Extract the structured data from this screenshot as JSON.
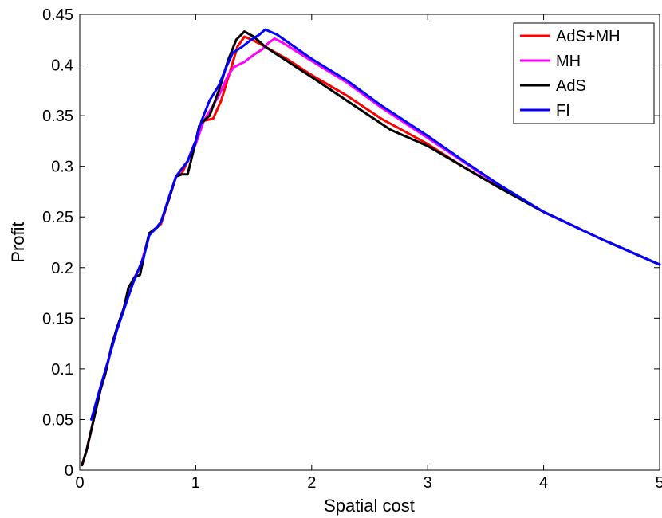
{
  "chart_data": {
    "type": "line",
    "xlabel": "Spatial cost",
    "ylabel": "Profit",
    "xlim": [
      0,
      5
    ],
    "ylim": [
      0,
      0.45
    ],
    "x_ticks": [
      "0",
      "1",
      "2",
      "3",
      "4",
      "5"
    ],
    "y_ticks": [
      "0",
      "0.05",
      "0.1",
      "0.15",
      "0.2",
      "0.25",
      "0.3",
      "0.35",
      "0.4",
      "0.45"
    ],
    "grid": false,
    "legend_position": "top-right",
    "series": [
      {
        "name": "AdS+MH",
        "color": "#ff0000",
        "points": [
          [
            0.02,
            0.005
          ],
          [
            0.06,
            0.02
          ],
          [
            0.12,
            0.05
          ],
          [
            0.18,
            0.08
          ],
          [
            0.22,
            0.095
          ],
          [
            0.28,
            0.125
          ],
          [
            0.32,
            0.14
          ],
          [
            0.38,
            0.16
          ],
          [
            0.42,
            0.18
          ],
          [
            0.47,
            0.19
          ],
          [
            0.52,
            0.2
          ],
          [
            0.57,
            0.22
          ],
          [
            0.6,
            0.234
          ],
          [
            0.67,
            0.24
          ],
          [
            0.7,
            0.243
          ],
          [
            0.77,
            0.268
          ],
          [
            0.83,
            0.29
          ],
          [
            0.88,
            0.293
          ],
          [
            0.93,
            0.305
          ],
          [
            0.98,
            0.32
          ],
          [
            1.02,
            0.33
          ],
          [
            1.07,
            0.345
          ],
          [
            1.15,
            0.347
          ],
          [
            1.22,
            0.365
          ],
          [
            1.3,
            0.395
          ],
          [
            1.36,
            0.418
          ],
          [
            1.42,
            0.428
          ],
          [
            1.5,
            0.424
          ],
          [
            1.6,
            0.418
          ],
          [
            1.8,
            0.405
          ],
          [
            2.0,
            0.39
          ],
          [
            2.3,
            0.37
          ],
          [
            2.6,
            0.347
          ],
          [
            3.0,
            0.322
          ],
          [
            3.3,
            0.3
          ],
          [
            3.6,
            0.28
          ],
          [
            4.0,
            0.255
          ],
          [
            4.5,
            0.228
          ],
          [
            5.0,
            0.203
          ]
        ]
      },
      {
        "name": "MH",
        "color": "#ff00ff",
        "points": [
          [
            0.02,
            0.005
          ],
          [
            0.06,
            0.02
          ],
          [
            0.12,
            0.05
          ],
          [
            0.18,
            0.08
          ],
          [
            0.22,
            0.095
          ],
          [
            0.28,
            0.125
          ],
          [
            0.32,
            0.14
          ],
          [
            0.38,
            0.16
          ],
          [
            0.42,
            0.18
          ],
          [
            0.47,
            0.19
          ],
          [
            0.52,
            0.2
          ],
          [
            0.57,
            0.22
          ],
          [
            0.6,
            0.234
          ],
          [
            0.67,
            0.24
          ],
          [
            0.7,
            0.245
          ],
          [
            0.77,
            0.268
          ],
          [
            0.83,
            0.29
          ],
          [
            0.93,
            0.305
          ],
          [
            1.0,
            0.322
          ],
          [
            1.07,
            0.345
          ],
          [
            1.15,
            0.36
          ],
          [
            1.2,
            0.37
          ],
          [
            1.28,
            0.39
          ],
          [
            1.33,
            0.398
          ],
          [
            1.42,
            0.403
          ],
          [
            1.5,
            0.41
          ],
          [
            1.58,
            0.416
          ],
          [
            1.63,
            0.422
          ],
          [
            1.68,
            0.426
          ],
          [
            1.75,
            0.422
          ],
          [
            2.0,
            0.404
          ],
          [
            2.3,
            0.383
          ],
          [
            2.6,
            0.358
          ],
          [
            3.0,
            0.328
          ],
          [
            3.3,
            0.305
          ],
          [
            3.6,
            0.282
          ],
          [
            4.0,
            0.255
          ],
          [
            4.5,
            0.228
          ],
          [
            5.0,
            0.203
          ]
        ]
      },
      {
        "name": "AdS",
        "color": "#000000",
        "points": [
          [
            0.02,
            0.005
          ],
          [
            0.06,
            0.02
          ],
          [
            0.12,
            0.05
          ],
          [
            0.18,
            0.08
          ],
          [
            0.22,
            0.095
          ],
          [
            0.28,
            0.125
          ],
          [
            0.32,
            0.14
          ],
          [
            0.38,
            0.16
          ],
          [
            0.42,
            0.18
          ],
          [
            0.47,
            0.19
          ],
          [
            0.52,
            0.193
          ],
          [
            0.57,
            0.22
          ],
          [
            0.6,
            0.234
          ],
          [
            0.67,
            0.24
          ],
          [
            0.7,
            0.245
          ],
          [
            0.77,
            0.268
          ],
          [
            0.83,
            0.29
          ],
          [
            0.88,
            0.292
          ],
          [
            0.93,
            0.292
          ],
          [
            0.98,
            0.315
          ],
          [
            1.03,
            0.34
          ],
          [
            1.07,
            0.345
          ],
          [
            1.12,
            0.35
          ],
          [
            1.2,
            0.375
          ],
          [
            1.28,
            0.405
          ],
          [
            1.35,
            0.425
          ],
          [
            1.42,
            0.433
          ],
          [
            1.5,
            0.428
          ],
          [
            1.6,
            0.418
          ],
          [
            1.8,
            0.403
          ],
          [
            2.0,
            0.388
          ],
          [
            2.3,
            0.365
          ],
          [
            2.68,
            0.336
          ],
          [
            3.0,
            0.32
          ],
          [
            3.3,
            0.3
          ],
          [
            3.6,
            0.28
          ],
          [
            4.0,
            0.255
          ],
          [
            4.5,
            0.228
          ],
          [
            5.0,
            0.203
          ]
        ]
      },
      {
        "name": "FI",
        "color": "#0000ff",
        "points": [
          [
            0.1,
            0.05
          ],
          [
            0.18,
            0.083
          ],
          [
            0.25,
            0.11
          ],
          [
            0.32,
            0.138
          ],
          [
            0.4,
            0.165
          ],
          [
            0.47,
            0.188
          ],
          [
            0.55,
            0.21
          ],
          [
            0.6,
            0.232
          ],
          [
            0.65,
            0.238
          ],
          [
            0.7,
            0.245
          ],
          [
            0.77,
            0.27
          ],
          [
            0.83,
            0.29
          ],
          [
            0.93,
            0.305
          ],
          [
            1.0,
            0.325
          ],
          [
            1.05,
            0.345
          ],
          [
            1.12,
            0.365
          ],
          [
            1.2,
            0.38
          ],
          [
            1.26,
            0.397
          ],
          [
            1.32,
            0.412
          ],
          [
            1.4,
            0.418
          ],
          [
            1.48,
            0.425
          ],
          [
            1.55,
            0.43
          ],
          [
            1.6,
            0.435
          ],
          [
            1.7,
            0.43
          ],
          [
            2.0,
            0.406
          ],
          [
            2.3,
            0.385
          ],
          [
            2.6,
            0.36
          ],
          [
            3.0,
            0.33
          ],
          [
            3.3,
            0.306
          ],
          [
            3.6,
            0.283
          ],
          [
            4.0,
            0.255
          ],
          [
            4.5,
            0.228
          ],
          [
            5.0,
            0.203
          ]
        ]
      }
    ]
  }
}
